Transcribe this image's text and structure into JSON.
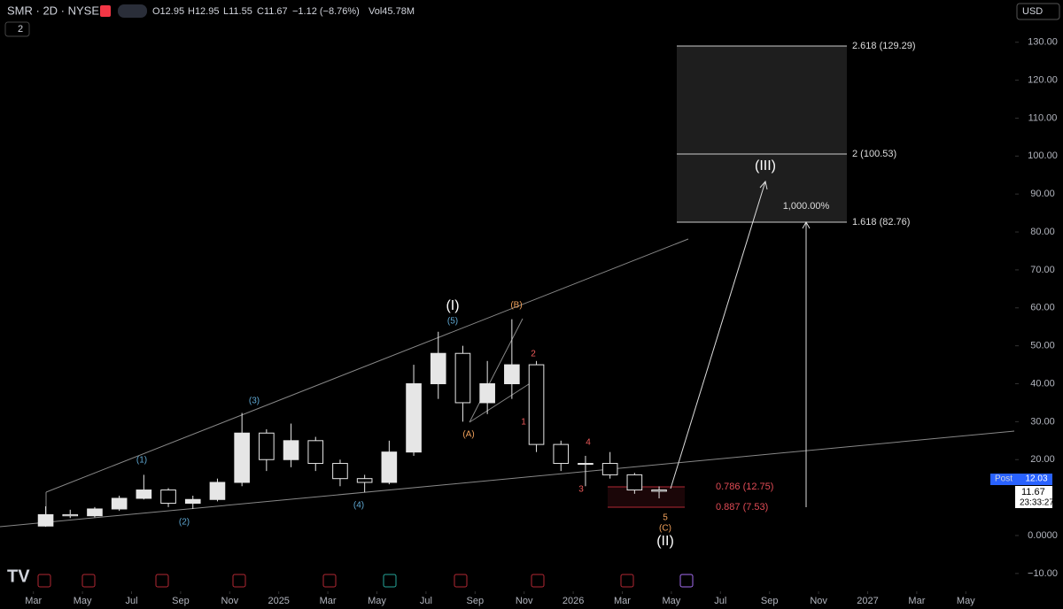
{
  "header": {
    "symbol": "SMR · 2D · NYSE",
    "open": "O12.95",
    "high": "H12.95",
    "low": "L11.55",
    "close": "C11.67",
    "change": "−1.12 (−8.76%)",
    "volume": "Vol45.78M",
    "currency": "USD",
    "indicator_count": "2"
  },
  "badges": {
    "session": "Post",
    "post_price": "12.03",
    "last_price": "11.67",
    "countdown": "23:33:27"
  },
  "chart_data": {
    "type": "candlestick",
    "x": [
      "2024-03",
      "2024-04",
      "2024-05",
      "2024-06",
      "2024-07",
      "2024-08",
      "2024-09",
      "2024-10",
      "2024-11",
      "2024-12",
      "2025-01",
      "2025-02",
      "2025-03",
      "2025-04",
      "2025-05",
      "2025-06",
      "2025-07",
      "2025-08",
      "2025-09",
      "2025-10",
      "2025-11",
      "2025-12",
      "2026-01",
      "2026-02",
      "2026-03",
      "2026-04"
    ],
    "open": [
      2.5,
      5.5,
      5.2,
      7.0,
      9.8,
      12,
      8.5,
      9.5,
      14,
      27,
      20,
      25,
      19,
      15,
      14,
      22,
      40,
      48,
      35,
      40,
      45,
      24,
      19,
      19,
      16,
      12
    ],
    "high": [
      7.7,
      6.8,
      7.5,
      10.5,
      16,
      12.5,
      10.5,
      15,
      32.3,
      28,
      29.5,
      26,
      20,
      16,
      25,
      45,
      53.7,
      50,
      46,
      57,
      46,
      25,
      21,
      22,
      16.5,
      12.95
    ],
    "low": [
      2.3,
      4.6,
      4.8,
      6.5,
      9.5,
      7.5,
      7.0,
      9,
      13,
      17,
      18,
      17,
      13,
      11.4,
      13.5,
      21,
      36,
      30,
      32,
      36,
      22,
      17,
      13,
      15,
      11,
      9.8
    ],
    "close": [
      5.5,
      5.2,
      7.0,
      9.8,
      12,
      8.5,
      9.5,
      14,
      27,
      20,
      25,
      19,
      15,
      14,
      22,
      40,
      48,
      35,
      40,
      45,
      24,
      19,
      19,
      16,
      12,
      11.67
    ],
    "up_color": "#e6e6e6",
    "down_color": "#000000",
    "xlim": [
      "2024-02",
      "2027-06"
    ],
    "xticks": [
      {
        "value": "2024-03",
        "label": "Mar"
      },
      {
        "value": "2024-05",
        "label": "May"
      },
      {
        "value": "2024-07",
        "label": "Jul"
      },
      {
        "value": "2024-09",
        "label": "Sep"
      },
      {
        "value": "2024-11",
        "label": "Nov"
      },
      {
        "value": "2025-01",
        "label": "2025"
      },
      {
        "value": "2025-03",
        "label": "Mar"
      },
      {
        "value": "2025-05",
        "label": "May"
      },
      {
        "value": "2025-07",
        "label": "Jul"
      },
      {
        "value": "2025-09",
        "label": "Sep"
      },
      {
        "value": "2025-11",
        "label": "Nov"
      },
      {
        "value": "2026-01",
        "label": "2026"
      },
      {
        "value": "2026-03",
        "label": "Mar"
      },
      {
        "value": "2026-05",
        "label": "May"
      },
      {
        "value": "2026-07",
        "label": "Jul"
      },
      {
        "value": "2026-09",
        "label": "Sep"
      },
      {
        "value": "2026-11",
        "label": "Nov"
      },
      {
        "value": "2027-01",
        "label": "2027"
      },
      {
        "value": "2027-03",
        "label": "Mar"
      },
      {
        "value": "2027-05",
        "label": "May"
      }
    ],
    "ylim": [
      -14,
      134.6
    ],
    "yticks": [
      {
        "value": 130,
        "label": "130.00"
      },
      {
        "value": 120,
        "label": "120.00"
      },
      {
        "value": 110,
        "label": "110.00"
      },
      {
        "value": 100,
        "label": "100.00"
      },
      {
        "value": 90,
        "label": "90.00"
      },
      {
        "value": 80,
        "label": "80.00"
      },
      {
        "value": 70,
        "label": "70.00"
      },
      {
        "value": 60,
        "label": "60.00"
      },
      {
        "value": 50,
        "label": "50.00"
      },
      {
        "value": 40,
        "label": "40.00"
      },
      {
        "value": 30,
        "label": "30.00"
      },
      {
        "value": 20,
        "label": "20.00"
      },
      {
        "value": 0,
        "label": "0.0000"
      },
      {
        "value": -10,
        "label": "−10.00"
      }
    ],
    "annotations": [
      "(1)",
      "(2)",
      "(3)",
      "(4)",
      "(5)",
      "(I)",
      "(A)",
      "(B)",
      "1",
      "2",
      "3",
      "4",
      "5",
      "(C)",
      "(II)",
      "(III)",
      "1,000.00%",
      "2.618 (129.29)",
      "2 (100.53)",
      "1.618 (82.76)",
      "0.786 (12.75)",
      "0.887 (7.53)"
    ]
  }
}
